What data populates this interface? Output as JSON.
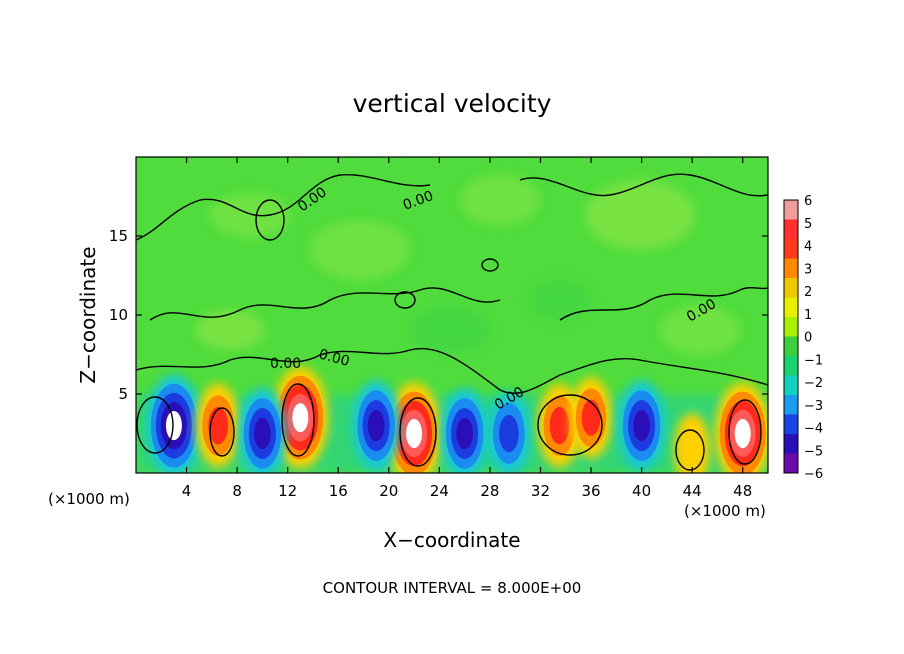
{
  "chart_data": {
    "type": "heatmap",
    "title": "vertical velocity",
    "xlabel": "X−coordinate",
    "ylabel": "Z−coordinate",
    "x_unit_left": "(×1000 m)",
    "x_unit_right": "(×1000 m)",
    "footer": "CONTOUR INTERVAL = 8.000E+00",
    "xlim": [
      0,
      50
    ],
    "ylim": [
      0,
      20
    ],
    "x_ticks": [
      4,
      8,
      12,
      16,
      20,
      24,
      28,
      32,
      36,
      40,
      44,
      48
    ],
    "y_ticks": [
      5,
      10,
      15
    ],
    "colorbar": {
      "min": -6,
      "max": 6,
      "ticks": [
        "6",
        "5",
        "4",
        "3",
        "2",
        "1",
        "0",
        "−1",
        "−2",
        "−3",
        "−4",
        "−5",
        "−6"
      ],
      "colors": [
        "#f29c9c",
        "#ff3030",
        "#ff3a1a",
        "#ff8a00",
        "#f0c800",
        "#e8f000",
        "#a8f000",
        "#3cd03c",
        "#1ad26e",
        "#12d0c0",
        "#1a9cf0",
        "#1a44e6",
        "#2a0fb8",
        "#6a0aa8"
      ]
    },
    "contour_labels": [
      "0.00",
      "0.00",
      "0.00",
      "0.00",
      "0.00",
      "0.00"
    ],
    "cells": [
      {
        "x": 3,
        "z": 3,
        "w": -7
      },
      {
        "x": 13,
        "z": 3.5,
        "w": 7
      },
      {
        "x": 22,
        "z": 2.5,
        "w": 7
      },
      {
        "x": 48,
        "z": 2.5,
        "w": 7
      },
      {
        "x": 6.5,
        "z": 3,
        "w": 4
      },
      {
        "x": 10,
        "z": 2.5,
        "w": -5
      },
      {
        "x": 19,
        "z": 3,
        "w": -5
      },
      {
        "x": 26,
        "z": 2.5,
        "w": -5
      },
      {
        "x": 29.5,
        "z": 2.5,
        "w": -4
      },
      {
        "x": 33.5,
        "z": 3,
        "w": 4
      },
      {
        "x": 36,
        "z": 3.5,
        "w": 3.5
      },
      {
        "x": 40,
        "z": 3,
        "w": -5
      },
      {
        "x": 44,
        "z": 1.5,
        "w": 2
      }
    ]
  }
}
